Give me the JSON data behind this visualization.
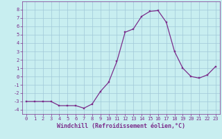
{
  "x": [
    0,
    1,
    2,
    3,
    4,
    5,
    6,
    7,
    8,
    9,
    10,
    11,
    12,
    13,
    14,
    15,
    16,
    17,
    18,
    19,
    20,
    21,
    22,
    23
  ],
  "y": [
    -3,
    -3,
    -3,
    -3,
    -3.5,
    -3.5,
    -3.5,
    -3.8,
    -3.3,
    -1.8,
    -0.7,
    1.8,
    5.3,
    5.7,
    7.2,
    7.8,
    7.9,
    6.5,
    3.0,
    1.0,
    0.0,
    -0.2,
    0.2,
    1.2
  ],
  "line_color": "#7B2D8B",
  "marker": "s",
  "marker_size": 1.8,
  "line_width": 0.9,
  "bg_color": "#C8EEF0",
  "grid_color": "#A0C8D8",
  "xlabel": "Windchill (Refroidissement éolien,°C)",
  "xlim": [
    -0.5,
    23.5
  ],
  "ylim": [
    -4.5,
    9.0
  ],
  "yticks": [
    -4,
    -3,
    -2,
    -1,
    0,
    1,
    2,
    3,
    4,
    5,
    6,
    7,
    8
  ],
  "xticks": [
    0,
    1,
    2,
    3,
    4,
    5,
    6,
    7,
    8,
    9,
    10,
    11,
    12,
    13,
    14,
    15,
    16,
    17,
    18,
    19,
    20,
    21,
    22,
    23
  ],
  "tick_fontsize": 5.0,
  "xlabel_fontsize": 6.0,
  "axis_label_color": "#7B2D8B",
  "spine_color": "#7B2D8B"
}
